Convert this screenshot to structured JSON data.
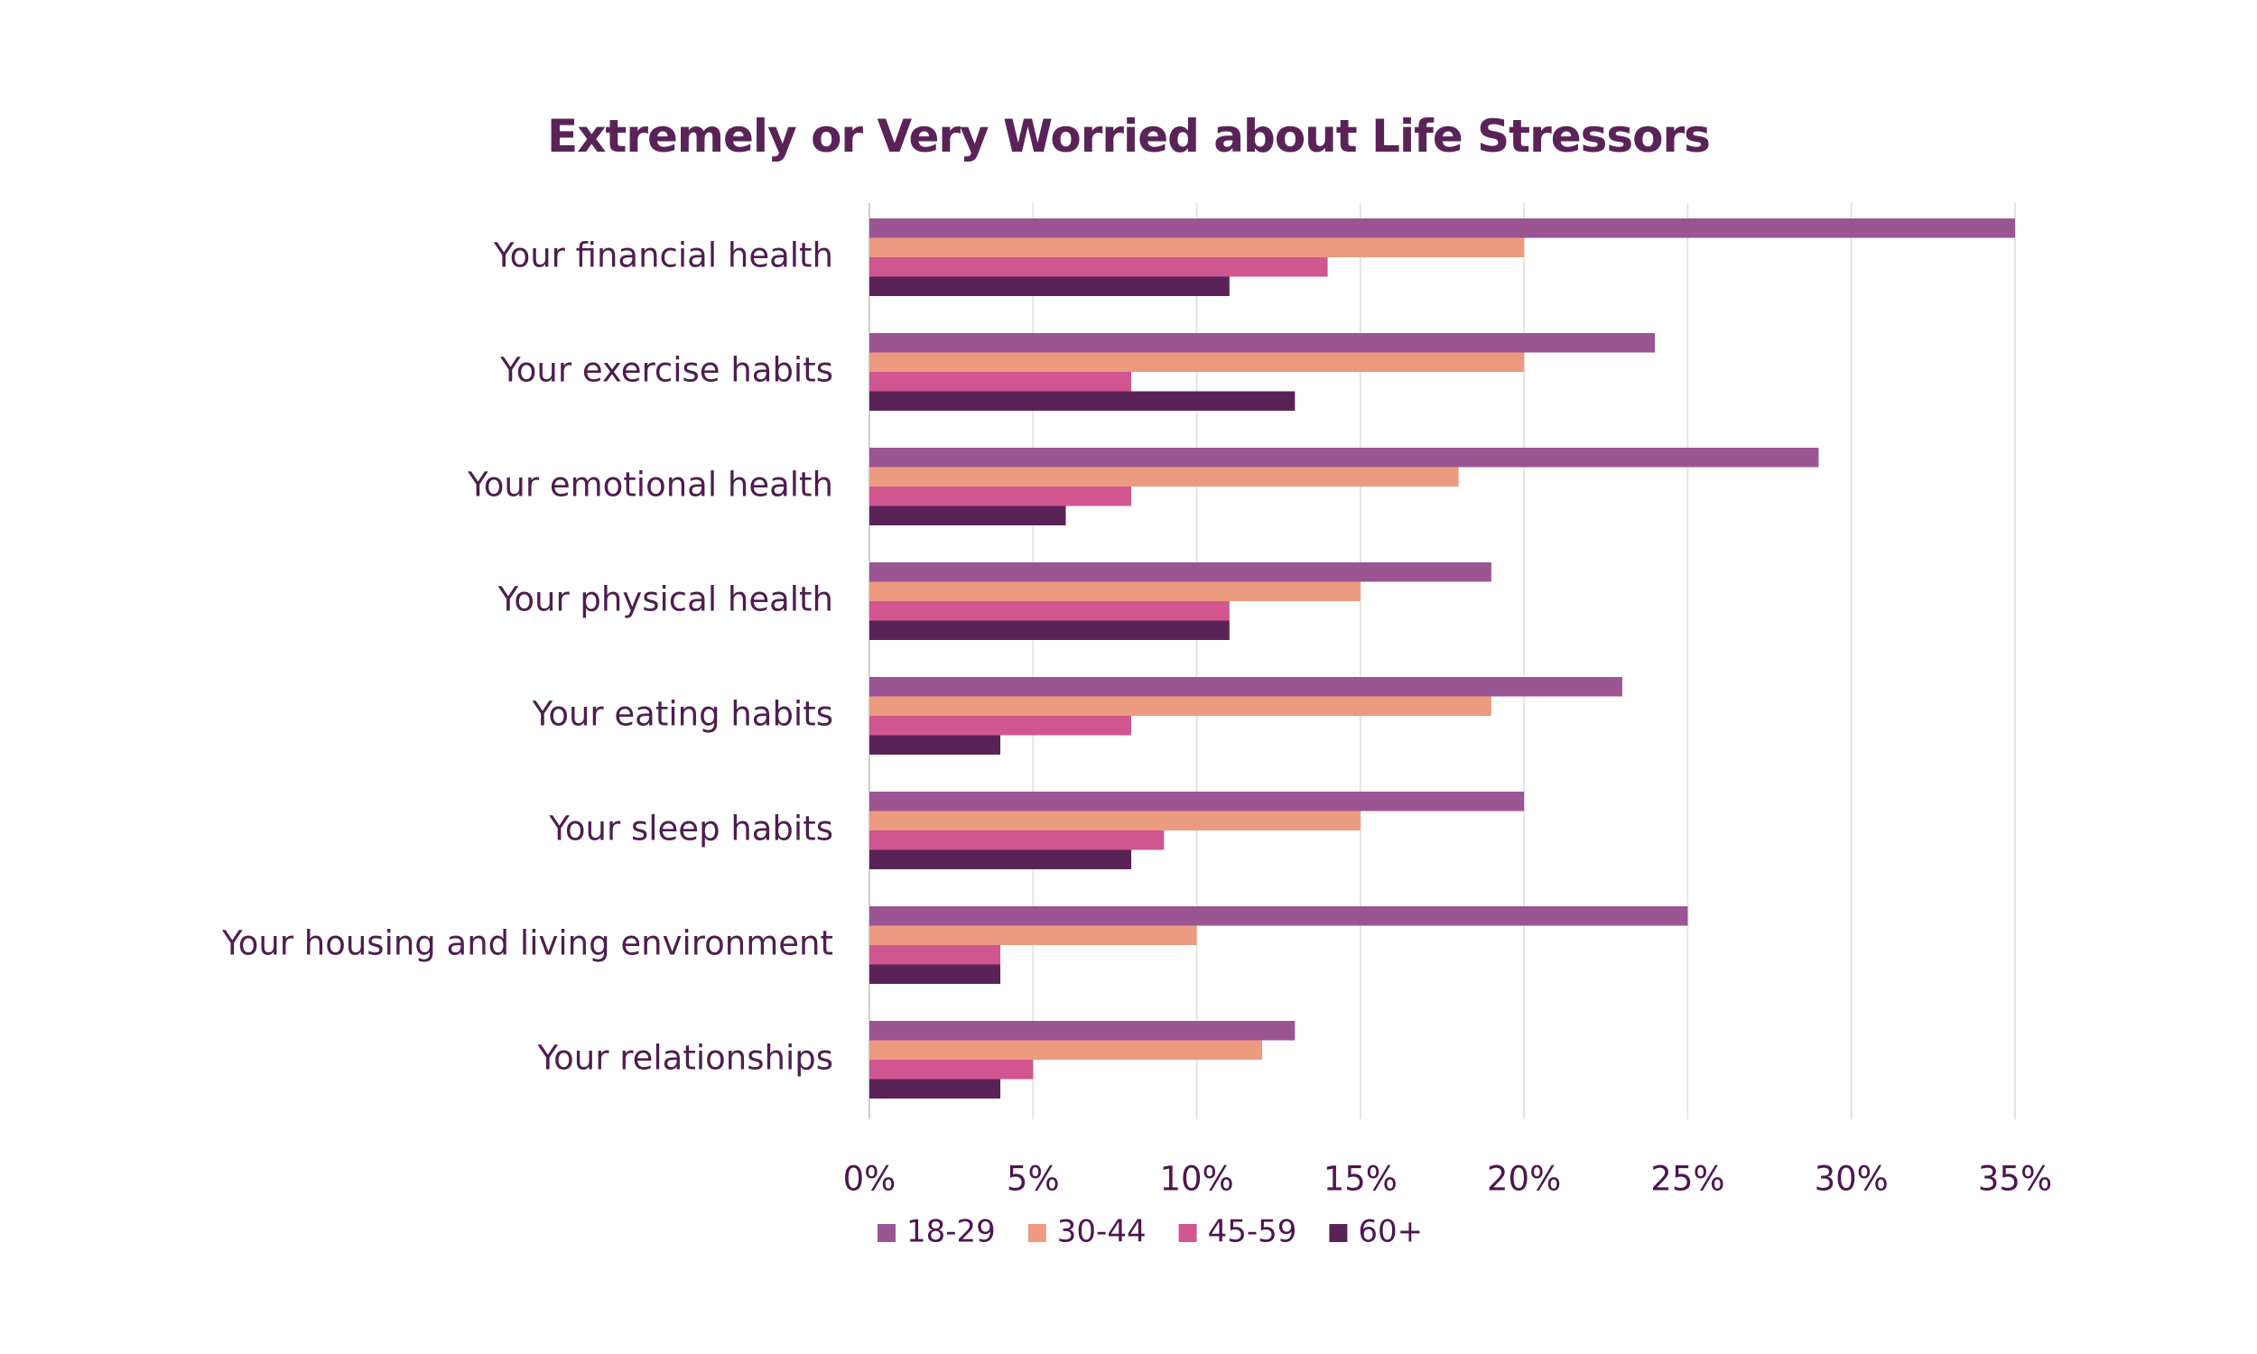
{
  "chart_data": {
    "type": "bar",
    "orientation": "horizontal",
    "title": "Extremely or Very Worried about Life Stressors",
    "xlabel": "",
    "ylabel": "",
    "xlim": [
      0,
      35
    ],
    "x_ticks": [
      "0%",
      "5%",
      "10%",
      "15%",
      "20%",
      "25%",
      "30%",
      "35%"
    ],
    "tick_values": [
      0,
      5,
      10,
      15,
      20,
      25,
      30,
      35
    ],
    "grid": "vertical",
    "legend_position": "bottom",
    "categories": [
      "Your financial health",
      "Your exercise habits",
      "Your emotional health",
      "Your physical health",
      "Your eating habits",
      "Your sleep habits",
      "Your housing and living environment",
      "Your relationships"
    ],
    "series": [
      {
        "name": "18-29",
        "color": "#9b5593",
        "values": [
          35,
          24,
          29,
          19,
          23,
          20,
          25,
          13
        ]
      },
      {
        "name": "30-44",
        "color": "#ec9a80",
        "values": [
          20,
          20,
          18,
          15,
          19,
          15,
          10,
          12
        ]
      },
      {
        "name": "45-59",
        "color": "#d1568f",
        "values": [
          14,
          8,
          8,
          11,
          8,
          9,
          4,
          5
        ]
      },
      {
        "name": "60+",
        "color": "#5a2358",
        "values": [
          11,
          13,
          6,
          11,
          4,
          8,
          4,
          4
        ]
      }
    ]
  }
}
